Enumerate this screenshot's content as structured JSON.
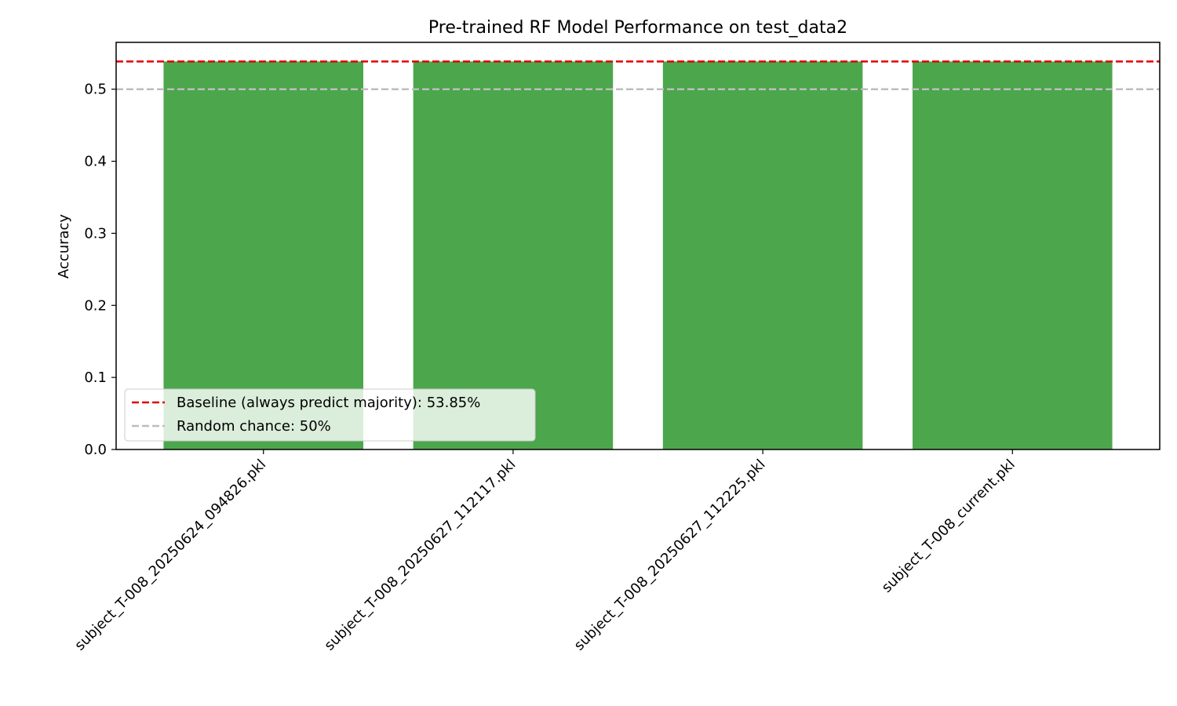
{
  "chart_data": {
    "type": "bar",
    "title": "Pre-trained RF Model Performance on test_data2",
    "xlabel": "",
    "ylabel": "Accuracy",
    "categories": [
      "subject_T-008_20250624_094826.pkl",
      "subject_T-008_20250627_112117.pkl",
      "subject_T-008_20250627_112225.pkl",
      "subject_T-008_current.pkl"
    ],
    "values": [
      0.5385,
      0.5385,
      0.5385,
      0.5385
    ],
    "ylim": [
      0,
      0.565
    ],
    "yticks": [
      "0.0",
      "0.1",
      "0.2",
      "0.3",
      "0.4",
      "0.5"
    ],
    "bar_color": "#4ca64c",
    "reference_lines": [
      {
        "label": "Baseline (always predict majority): 53.85%",
        "value": 0.5385,
        "color": "#e00000",
        "style": "dashed"
      },
      {
        "label": "Random chance: 50%",
        "value": 0.5,
        "color": "#bdbdbd",
        "style": "dashed"
      }
    ],
    "legend": {
      "position": "lower-left"
    },
    "grid": false
  }
}
